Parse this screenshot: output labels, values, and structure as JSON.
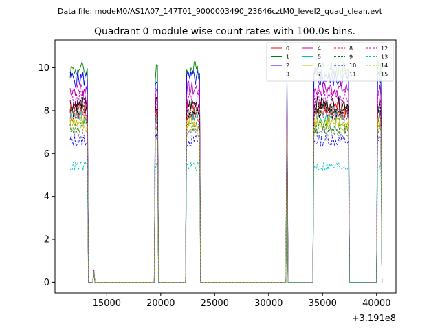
{
  "chart_data": {
    "type": "line",
    "suptitle": "Data file: modeM0/AS1A07_147T01_9000003490_23646cztM0_level2_quad_clean.evt",
    "title": "Quadrant 0 module wise count rates with 100.0s bins.",
    "xlabel": "",
    "ylabel": "",
    "x_offset_label": "+3.191e8",
    "xlim": [
      10200,
      41800
    ],
    "ylim": [
      -0.5,
      11.3
    ],
    "xticks": [
      15000,
      20000,
      25000,
      30000,
      35000,
      40000
    ],
    "xtick_labels": [
      "15000",
      "20000",
      "25000",
      "30000",
      "35000",
      "40000"
    ],
    "yticks": [
      0,
      2,
      4,
      6,
      8,
      10
    ],
    "ytick_labels": [
      "0",
      "2",
      "4",
      "6",
      "8",
      "10"
    ],
    "legend_position": "top-right",
    "observation_segments": [
      {
        "start": 11600,
        "end": 13200
      },
      {
        "start": 19500,
        "end": 19700
      },
      {
        "start": 22400,
        "end": 23600
      },
      {
        "start": 31700,
        "end": 31700
      },
      {
        "start": 34200,
        "end": 37400
      },
      {
        "start": 40100,
        "end": 40400
      }
    ],
    "series": [
      {
        "name": "0",
        "color": "#ff0000",
        "dash": "solid",
        "level": 8.1
      },
      {
        "name": "1",
        "color": "#008000",
        "dash": "solid",
        "level": 9.9
      },
      {
        "name": "2",
        "color": "#0000ff",
        "dash": "solid",
        "level": 9.5
      },
      {
        "name": "3",
        "color": "#000000",
        "dash": "solid",
        "level": 8.3
      },
      {
        "name": "4",
        "color": "#bf00bf",
        "dash": "solid",
        "level": 9.0
      },
      {
        "name": "5",
        "color": "#00bfbf",
        "dash": "solid",
        "level": 7.7
      },
      {
        "name": "6",
        "color": "#bfbf00",
        "dash": "solid",
        "level": 7.5
      },
      {
        "name": "7",
        "color": "#808080",
        "dash": "solid",
        "level": 7.9
      },
      {
        "name": "8",
        "color": "#ff0000",
        "dash": "dashed",
        "level": 7.8
      },
      {
        "name": "9",
        "color": "#008000",
        "dash": "dashed",
        "level": 7.2
      },
      {
        "name": "10",
        "color": "#0000ff",
        "dash": "dashed",
        "level": 6.6
      },
      {
        "name": "11",
        "color": "#000000",
        "dash": "dashed",
        "level": 8.0
      },
      {
        "name": "12",
        "color": "#bf00bf",
        "dash": "dashed",
        "level": 8.6
      },
      {
        "name": "13",
        "color": "#00bfbf",
        "dash": "dashed",
        "level": 5.4
      },
      {
        "name": "14",
        "color": "#bfbf00",
        "dash": "dashed",
        "level": 7.3
      },
      {
        "name": "15",
        "color": "#808080",
        "dash": "dashed",
        "level": 7.0
      }
    ]
  }
}
